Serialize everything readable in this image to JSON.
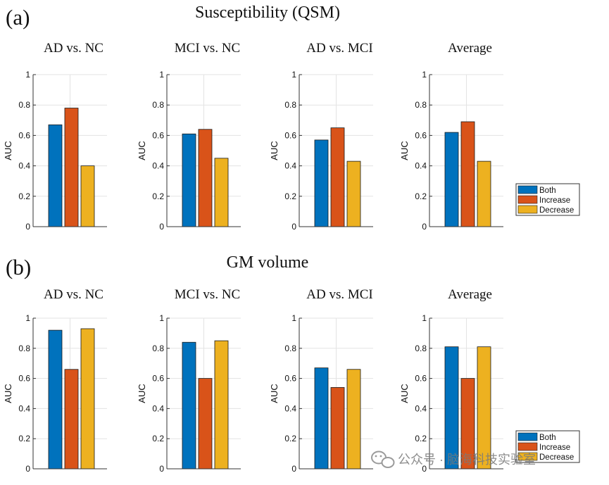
{
  "panels": [
    {
      "label": "(a)",
      "title": "Susceptibility (QSM)",
      "legend": [
        "Both",
        "Increase",
        "Decrease"
      ],
      "chart_data": [
        {
          "type": "bar",
          "title": "AD vs. NC",
          "ylabel": "AUC",
          "ylim": [
            0,
            1
          ],
          "yticks": [
            "0",
            "0.2",
            "0.4",
            "0.6",
            "0.8",
            "1"
          ],
          "grid": true,
          "series": [
            {
              "name": "Both",
              "values": [
                0.67
              ]
            },
            {
              "name": "Increase",
              "values": [
                0.78
              ]
            },
            {
              "name": "Decrease",
              "values": [
                0.4
              ]
            }
          ]
        },
        {
          "type": "bar",
          "title": "MCI vs. NC",
          "ylabel": "AUC",
          "ylim": [
            0,
            1
          ],
          "yticks": [
            "0",
            "0.2",
            "0.4",
            "0.6",
            "0.8",
            "1"
          ],
          "grid": true,
          "series": [
            {
              "name": "Both",
              "values": [
                0.61
              ]
            },
            {
              "name": "Increase",
              "values": [
                0.64
              ]
            },
            {
              "name": "Decrease",
              "values": [
                0.45
              ]
            }
          ]
        },
        {
          "type": "bar",
          "title": "AD vs. MCI",
          "ylabel": "AUC",
          "ylim": [
            0,
            1
          ],
          "yticks": [
            "0",
            "0.2",
            "0.4",
            "0.6",
            "0.8",
            "1"
          ],
          "grid": true,
          "series": [
            {
              "name": "Both",
              "values": [
                0.57
              ]
            },
            {
              "name": "Increase",
              "values": [
                0.65
              ]
            },
            {
              "name": "Decrease",
              "values": [
                0.43
              ]
            }
          ]
        },
        {
          "type": "bar",
          "title": "Average",
          "ylabel": "AUC",
          "ylim": [
            0,
            1
          ],
          "yticks": [
            "0",
            "0.2",
            "0.4",
            "0.6",
            "0.8",
            "1"
          ],
          "grid": true,
          "series": [
            {
              "name": "Both",
              "values": [
                0.62
              ]
            },
            {
              "name": "Increase",
              "values": [
                0.69
              ]
            },
            {
              "name": "Decrease",
              "values": [
                0.43
              ]
            }
          ]
        }
      ]
    },
    {
      "label": "(b)",
      "title": "GM volume",
      "legend": [
        "Both",
        "Increase",
        "Decrease"
      ],
      "chart_data": [
        {
          "type": "bar",
          "title": "AD vs. NC",
          "ylabel": "AUC",
          "ylim": [
            0,
            1
          ],
          "yticks": [
            "0",
            "0.2",
            "0.4",
            "0.6",
            "0.8",
            "1"
          ],
          "grid": true,
          "series": [
            {
              "name": "Both",
              "values": [
                0.92
              ]
            },
            {
              "name": "Increase",
              "values": [
                0.66
              ]
            },
            {
              "name": "Decrease",
              "values": [
                0.93
              ]
            }
          ]
        },
        {
          "type": "bar",
          "title": "MCI vs. NC",
          "ylabel": "AUC",
          "ylim": [
            0,
            1
          ],
          "yticks": [
            "0",
            "0.2",
            "0.4",
            "0.6",
            "0.8",
            "1"
          ],
          "grid": true,
          "series": [
            {
              "name": "Both",
              "values": [
                0.84
              ]
            },
            {
              "name": "Increase",
              "values": [
                0.6
              ]
            },
            {
              "name": "Decrease",
              "values": [
                0.85
              ]
            }
          ]
        },
        {
          "type": "bar",
          "title": "AD vs. MCI",
          "ylabel": "AUC",
          "ylim": [
            0,
            1
          ],
          "yticks": [
            "0",
            "0.2",
            "0.4",
            "0.6",
            "0.8",
            "1"
          ],
          "grid": true,
          "series": [
            {
              "name": "Both",
              "values": [
                0.67
              ]
            },
            {
              "name": "Increase",
              "values": [
                0.54
              ]
            },
            {
              "name": "Decrease",
              "values": [
                0.66
              ]
            }
          ]
        },
        {
          "type": "bar",
          "title": "Average",
          "ylabel": "AUC",
          "ylim": [
            0,
            1
          ],
          "yticks": [
            "0",
            "0.2",
            "0.4",
            "0.6",
            "0.8",
            "1"
          ],
          "grid": true,
          "series": [
            {
              "name": "Both",
              "values": [
                0.81
              ]
            },
            {
              "name": "Increase",
              "values": [
                0.6
              ]
            },
            {
              "name": "Decrease",
              "values": [
                0.81
              ]
            }
          ]
        }
      ]
    }
  ],
  "colors": {
    "Both": "#0072BD",
    "Increase": "#D95319",
    "Decrease": "#EDB120",
    "grid": "#e3e3e3",
    "axis": "#333333"
  },
  "watermark": {
    "text": "公众号 · 脑海科技实验室",
    "icon": "wechat-icon"
  }
}
